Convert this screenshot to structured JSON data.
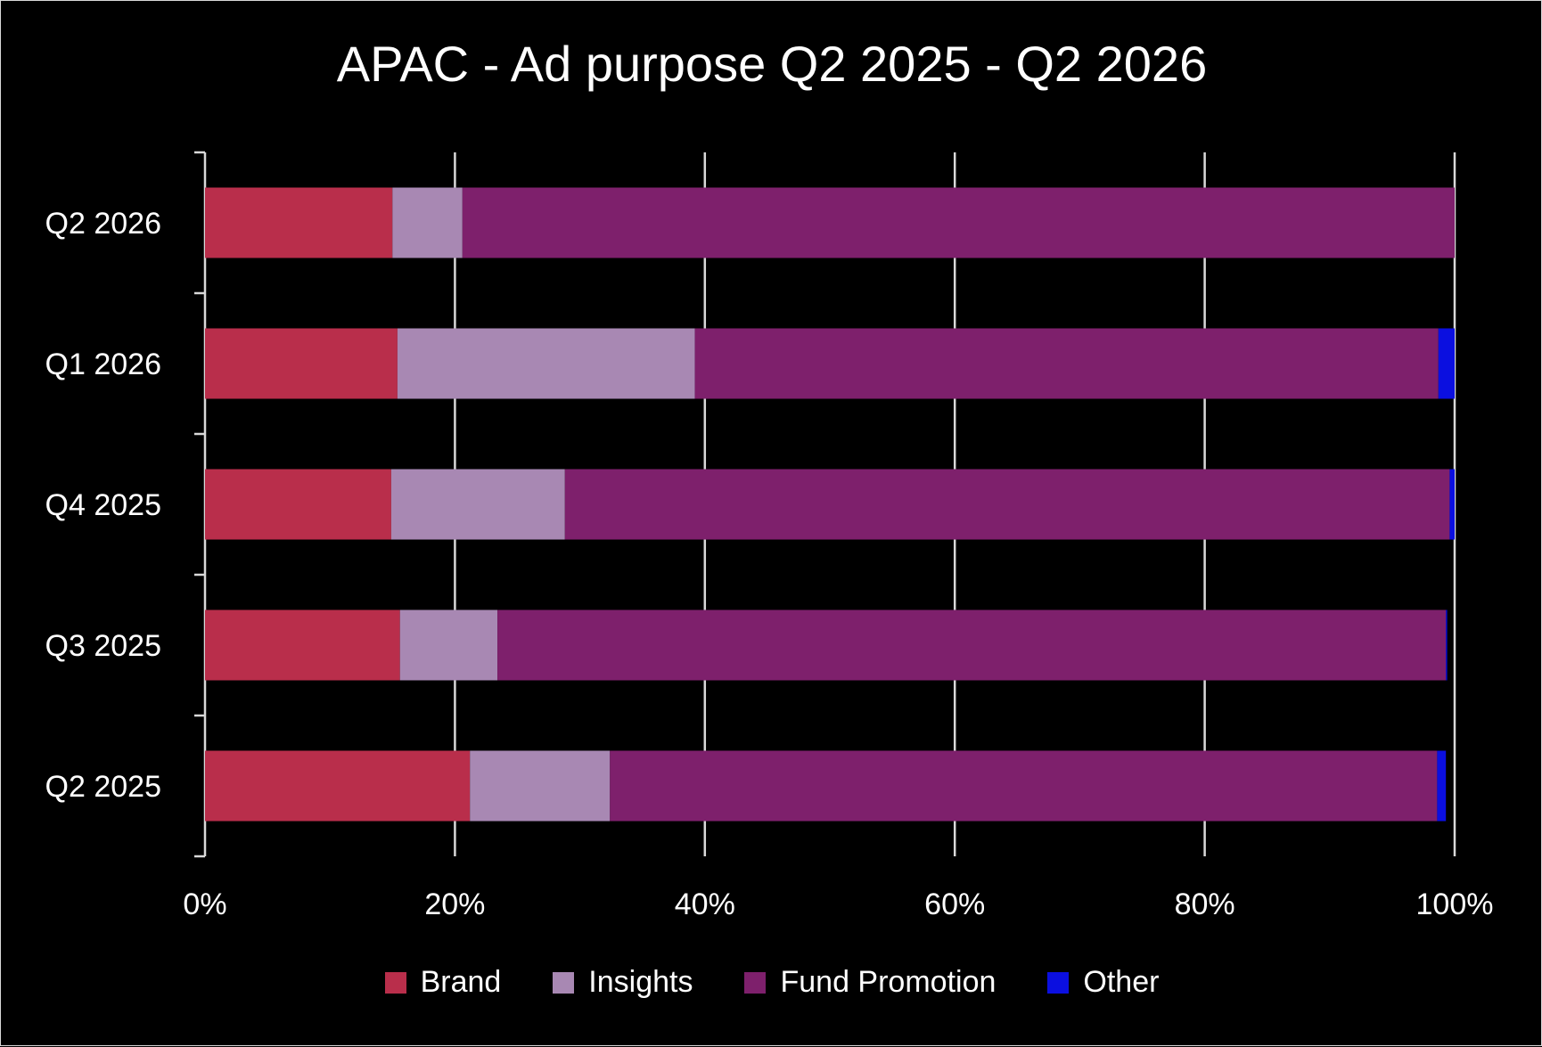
{
  "chart_data": {
    "type": "bar",
    "orientation": "horizontal",
    "stacked": "percent",
    "title": "APAC - Ad purpose Q2 2025 - Q2 2026",
    "categories": [
      "Q2 2026",
      "Q1 2026",
      "Q4 2025",
      "Q3 2025",
      "Q2 2025"
    ],
    "series": [
      {
        "name": "Brand",
        "color": "#b92e4b",
        "values": [
          15.0,
          15.4,
          14.9,
          15.6,
          21.2
        ]
      },
      {
        "name": "Insights",
        "color": "#a888b3",
        "values": [
          5.6,
          23.8,
          13.9,
          7.8,
          11.2
        ]
      },
      {
        "name": "Fund Promotion",
        "color": "#7e206c",
        "values": [
          79.4,
          59.5,
          70.8,
          75.9,
          66.2
        ]
      },
      {
        "name": "Other",
        "color": "#0b0fe0",
        "values": [
          0.0,
          1.3,
          0.4,
          0.1,
          0.7
        ]
      }
    ],
    "xlim": [
      0,
      100
    ],
    "x_ticks": [
      "0%",
      "20%",
      "40%",
      "60%",
      "80%",
      "100%"
    ],
    "grid": "vertical",
    "legend": "bottom",
    "xlabel": "",
    "ylabel": ""
  }
}
